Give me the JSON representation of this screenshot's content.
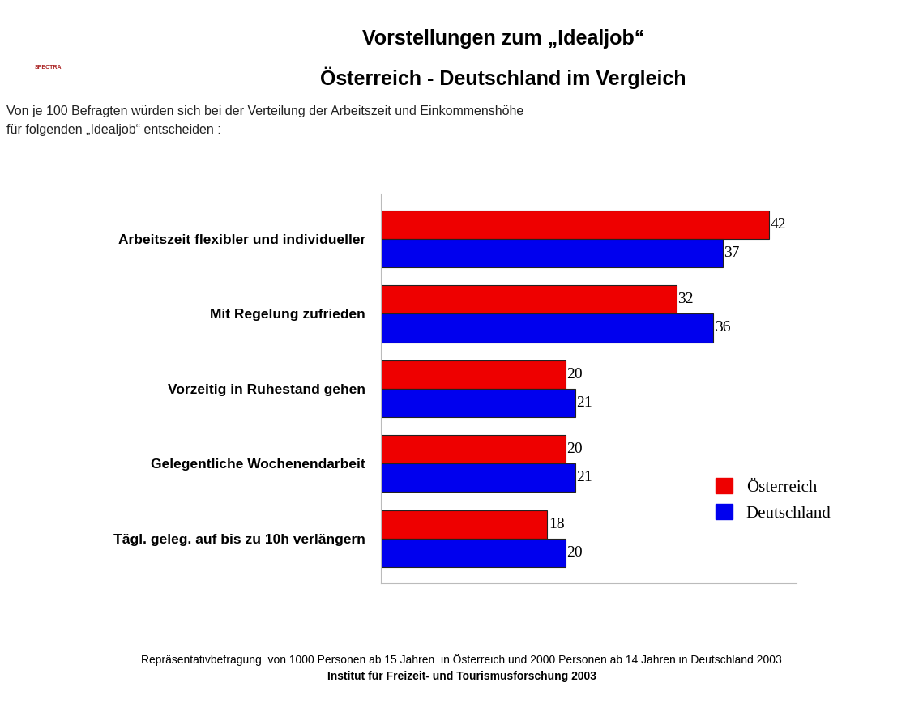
{
  "chart_data": {
    "type": "bar",
    "orientation": "horizontal",
    "title": "Vorstellungen zum „Idealjob“",
    "subtitle": "Österreich - Deutschland im Vergleich",
    "description": [
      "Von je 100 Befragten würden sich bei der Verteilung der Arbeitszeit und Einkommenshöhe",
      "für folgenden „Idealjob“ entscheiden :"
    ],
    "footnote": "Repräsentativbefragung  von 1000 Personen ab 15 Jahren  in Österreich und 2000 Personen ab 14 Jahren in Deutschland 2003",
    "source": "Institut für Freizeit- und Tourismusforschung 2003",
    "logo": "SPECTRA",
    "categories": [
      "Arbeitszeit flexibler und individueller",
      "Mit Regelung zufrieden",
      "Vorzeitig in Ruhestand gehen",
      "Gelegentliche Wochenendarbeit",
      "Tägl. geleg. auf bis zu 10h verlängern"
    ],
    "series": [
      {
        "name": "Österreich",
        "color": "#ee0000",
        "values": [
          42,
          32,
          20,
          20,
          18
        ]
      },
      {
        "name": "Deutschland",
        "color": "#0000ee",
        "values": [
          37,
          36,
          21,
          21,
          20
        ]
      }
    ],
    "xlim": [
      0,
      45
    ],
    "xticks": [],
    "data_labels": true,
    "tick_labels": "y",
    "legend": "lower right"
  }
}
